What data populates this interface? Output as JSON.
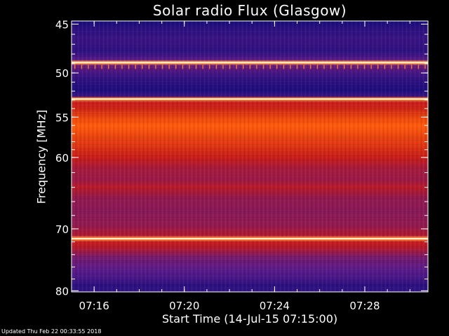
{
  "footer": {
    "updated": "Updated Thu Feb 22 00:33:55 2018"
  },
  "chart_data": {
    "type": "heatmap",
    "title": "Solar radio Flux (Glasgow)",
    "xlabel": "Start Time (14-Jul-15 07:15:00)",
    "ylabel": "Frequency [MHz]",
    "x_range_min": [
      15.0,
      30.8
    ],
    "y_range_mhz": [
      44.7,
      80.2
    ],
    "y_scale": "log",
    "x_ticks": [
      {
        "min": 16,
        "label": "07:16"
      },
      {
        "min": 20,
        "label": "07:20"
      },
      {
        "min": 24,
        "label": "07:24"
      },
      {
        "min": 28,
        "label": "07:28"
      }
    ],
    "y_ticks": [
      {
        "mhz": 45,
        "label": "45"
      },
      {
        "mhz": 50,
        "label": "50"
      },
      {
        "mhz": 55,
        "label": "55"
      },
      {
        "mhz": 60,
        "label": "60"
      },
      {
        "mhz": 70,
        "label": "70"
      },
      {
        "mhz": 80,
        "label": "80"
      }
    ],
    "intensity_profile": [
      {
        "mhz": 44.7,
        "level": 0.05
      },
      {
        "mhz": 45.3,
        "level": 0.12
      },
      {
        "mhz": 46.5,
        "level": 0.18
      },
      {
        "mhz": 47.8,
        "level": 0.14
      },
      {
        "mhz": 48.6,
        "level": 0.3
      },
      {
        "mhz": 48.9,
        "level": 1.0
      },
      {
        "mhz": 49.2,
        "level": 0.35
      },
      {
        "mhz": 50.0,
        "level": 0.22
      },
      {
        "mhz": 51.0,
        "level": 0.12
      },
      {
        "mhz": 52.0,
        "level": 0.08
      },
      {
        "mhz": 52.6,
        "level": 0.2
      },
      {
        "mhz": 52.9,
        "level": 0.9
      },
      {
        "mhz": 53.3,
        "level": 0.55
      },
      {
        "mhz": 54.0,
        "level": 0.6
      },
      {
        "mhz": 55.0,
        "level": 0.72
      },
      {
        "mhz": 56.0,
        "level": 0.8
      },
      {
        "mhz": 57.0,
        "level": 0.74
      },
      {
        "mhz": 58.5,
        "level": 0.66
      },
      {
        "mhz": 60.0,
        "level": 0.56
      },
      {
        "mhz": 61.5,
        "level": 0.47
      },
      {
        "mhz": 63.0,
        "level": 0.45
      },
      {
        "mhz": 64.0,
        "level": 0.52
      },
      {
        "mhz": 65.5,
        "level": 0.43
      },
      {
        "mhz": 67.5,
        "level": 0.41
      },
      {
        "mhz": 69.5,
        "level": 0.43
      },
      {
        "mhz": 71.0,
        "level": 0.5
      },
      {
        "mhz": 71.5,
        "level": 0.95
      },
      {
        "mhz": 72.0,
        "level": 0.55
      },
      {
        "mhz": 73.0,
        "level": 0.5
      },
      {
        "mhz": 74.5,
        "level": 0.36
      },
      {
        "mhz": 76.5,
        "level": 0.3
      },
      {
        "mhz": 78.0,
        "level": 0.22
      },
      {
        "mhz": 79.0,
        "level": 0.12
      },
      {
        "mhz": 80.2,
        "level": 0.15
      }
    ],
    "bright_lines_mhz": [
      48.9,
      52.9,
      71.5
    ],
    "colors": {
      "low": "#0a0a7a",
      "mid_low": "#5a1a8a",
      "mid": "#c81a1a",
      "high": "#ff5a0a",
      "peak": "#fff2c8",
      "axes": "#ffffff",
      "background": "#000000"
    }
  }
}
